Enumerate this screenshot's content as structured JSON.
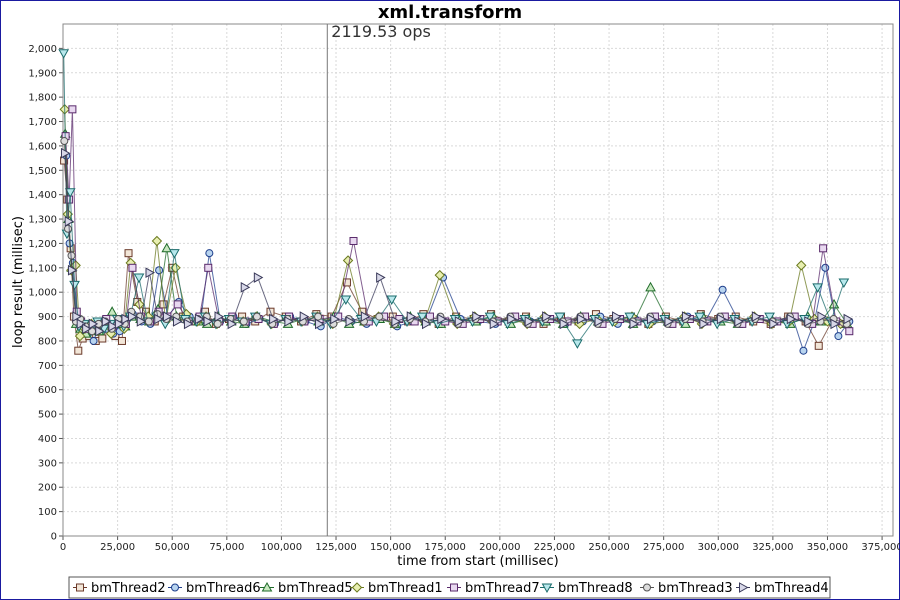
{
  "chart_data": {
    "type": "scatter",
    "title": "xml.transform",
    "annotation": "2119.53 ops",
    "annotation_x": 121000,
    "xlabel": "time from start (millisec)",
    "ylabel": "loop result (millisec)",
    "xlim": [
      0,
      380000
    ],
    "ylim": [
      0,
      2100
    ],
    "xticks": [
      0,
      25000,
      50000,
      75000,
      100000,
      125000,
      150000,
      175000,
      200000,
      225000,
      250000,
      275000,
      300000,
      325000,
      350000,
      375000
    ],
    "xtick_labels": [
      "0",
      "25,000",
      "50,000",
      "75,000",
      "100,000",
      "125,000",
      "150,000",
      "175,000",
      "200,000",
      "225,000",
      "250,000",
      "275,000",
      "300,000",
      "325,000",
      "350,000",
      "375,000"
    ],
    "yticks": [
      0,
      100,
      200,
      300,
      400,
      500,
      600,
      700,
      800,
      900,
      1000,
      1100,
      1200,
      1300,
      1400,
      1500,
      1600,
      1700,
      1800,
      1900,
      2000
    ],
    "ytick_labels": [
      "0",
      "100",
      "200",
      "300",
      "400",
      "500",
      "600",
      "700",
      "800",
      "900",
      "1,000",
      "1,100",
      "1,200",
      "1,300",
      "1,400",
      "1,500",
      "1,600",
      "1,700",
      "1,800",
      "1,900",
      "2,000"
    ],
    "grid": true,
    "legend_position": "bottom",
    "series": [
      {
        "name": "bmThread2",
        "marker": "square",
        "color": "#6b3a2a",
        "fill": "#f2e6d8",
        "x": [
          500,
          2000,
          3500,
          5000,
          7000,
          9000,
          12000,
          15000,
          18000,
          21000,
          24000,
          27000,
          30000,
          34000,
          38000,
          42000,
          46000,
          50000,
          55000,
          60000,
          65000,
          70000,
          76000,
          82000,
          88000,
          95000,
          102000,
          109000,
          116000,
          123000,
          130000,
          137000,
          144000,
          151000,
          158000,
          165000,
          172000,
          180000,
          188000,
          196000,
          204000,
          212000,
          220000,
          228000,
          236000,
          244000,
          252000,
          260000,
          268000,
          276000,
          284000,
          292000,
          300000,
          308000,
          316000,
          324000,
          332000,
          340000,
          346000,
          352000,
          358000
        ],
        "y": [
          1540,
          1380,
          1180,
          900,
          760,
          810,
          820,
          800,
          810,
          860,
          820,
          800,
          1160,
          960,
          920,
          880,
          950,
          1100,
          900,
          880,
          920,
          870,
          890,
          900,
          880,
          920,
          900,
          880,
          910,
          900,
          1040,
          920,
          890,
          900,
          880,
          910,
          870,
          900,
          890,
          910,
          880,
          900,
          870,
          900,
          880,
          910,
          890,
          900,
          870,
          900,
          880,
          910,
          890,
          900,
          880,
          870,
          900,
          880,
          780,
          880,
          870
        ]
      },
      {
        "name": "bmThread6",
        "marker": "circle",
        "color": "#1f3f8c",
        "fill": "#b8d4ef",
        "x": [
          1500,
          3000,
          4500,
          6500,
          8500,
          11000,
          14000,
          17000,
          20000,
          23000,
          26000,
          29000,
          32000,
          36000,
          40000,
          44000,
          48000,
          53000,
          58000,
          63000,
          67000,
          72000,
          78000,
          84000,
          90000,
          97000,
          104000,
          111000,
          118000,
          125000,
          132000,
          139000,
          146000,
          153000,
          160000,
          167000,
          174000,
          182000,
          190000,
          198000,
          206000,
          214000,
          222000,
          230000,
          238000,
          246000,
          254000,
          262000,
          270000,
          278000,
          286000,
          294000,
          302000,
          310000,
          318000,
          326000,
          334000,
          339000,
          344000,
          349000,
          355000,
          360000
        ],
        "y": [
          1560,
          1200,
          1120,
          880,
          860,
          840,
          800,
          880,
          850,
          830,
          840,
          890,
          910,
          880,
          870,
          1090,
          900,
          960,
          900,
          880,
          1160,
          880,
          900,
          870,
          890,
          870,
          900,
          880,
          860,
          900,
          880,
          870,
          900,
          860,
          880,
          900,
          1060,
          890,
          880,
          870,
          900,
          880,
          890,
          870,
          880,
          900,
          870,
          890,
          880,
          870,
          900,
          880,
          1010,
          870,
          890,
          880,
          900,
          760,
          880,
          1100,
          820,
          880
        ]
      },
      {
        "name": "bmThread5",
        "marker": "triangle-up",
        "color": "#1f6b2a",
        "fill": "#c8e8c0",
        "x": [
          1000,
          2500,
          4000,
          6000,
          8000,
          10500,
          13500,
          16500,
          19500,
          22500,
          25500,
          28500,
          31500,
          35500,
          39500,
          43500,
          47500,
          52000,
          57000,
          62000,
          66000,
          71000,
          77000,
          83000,
          89000,
          96000,
          103000,
          110000,
          117000,
          124000,
          131000,
          138000,
          145000,
          152000,
          159000,
          166000,
          173000,
          181000,
          189000,
          197000,
          205000,
          213000,
          221000,
          229000,
          237000,
          245000,
          253000,
          261000,
          269000,
          277000,
          285000,
          293000,
          301000,
          309000,
          317000,
          325000,
          333000,
          341000,
          347000,
          353000,
          359000
        ],
        "y": [
          1650,
          1300,
          1100,
          870,
          850,
          830,
          860,
          840,
          880,
          920,
          870,
          860,
          900,
          890,
          880,
          930,
          1180,
          900,
          890,
          880,
          870,
          900,
          880,
          870,
          900,
          880,
          870,
          890,
          880,
          900,
          870,
          880,
          890,
          870,
          900,
          880,
          870,
          890,
          880,
          900,
          870,
          890,
          880,
          870,
          900,
          880,
          890,
          870,
          1020,
          880,
          870,
          900,
          880,
          870,
          890,
          880,
          870,
          900,
          880,
          950,
          870
        ]
      },
      {
        "name": "bmThread1",
        "marker": "diamond",
        "color": "#6b7a20",
        "fill": "#e8efb0",
        "x": [
          800,
          2200,
          3800,
          5800,
          7800,
          10000,
          13000,
          16000,
          19000,
          22000,
          25000,
          28000,
          31000,
          35000,
          39000,
          43000,
          47000,
          51500,
          56500,
          61500,
          65500,
          70500,
          76500,
          82500,
          88500,
          95500,
          102500,
          109500,
          116500,
          123500,
          130500,
          137500,
          144500,
          151500,
          158500,
          165500,
          172500,
          180500,
          188500,
          196500,
          204500,
          212500,
          220500,
          228500,
          236500,
          244500,
          252500,
          260500,
          268500,
          276500,
          284500,
          292500,
          300500,
          308500,
          316500,
          324500,
          332500,
          338000,
          344000,
          350000,
          356000
        ],
        "y": [
          1750,
          1320,
          1090,
          1110,
          820,
          850,
          870,
          840,
          860,
          830,
          880,
          850,
          1120,
          950,
          900,
          1210,
          880,
          1100,
          910,
          880,
          900,
          870,
          890,
          880,
          900,
          870,
          890,
          880,
          900,
          870,
          1130,
          880,
          900,
          870,
          890,
          880,
          1070,
          870,
          900,
          880,
          890,
          870,
          900,
          880,
          870,
          890,
          880,
          900,
          870,
          880,
          900,
          870,
          890,
          880,
          900,
          870,
          880,
          1110,
          890,
          880,
          870
        ]
      },
      {
        "name": "bmThread7",
        "marker": "square",
        "color": "#5a2a6b",
        "fill": "#e8d8f0",
        "x": [
          1200,
          2800,
          4300,
          6300,
          8300,
          10800,
          13800,
          16800,
          19800,
          22800,
          25800,
          28800,
          31800,
          35800,
          39800,
          43800,
          47800,
          52500,
          57500,
          62500,
          66500,
          71500,
          77500,
          83500,
          89500,
          96500,
          103500,
          110500,
          117500,
          126000,
          133000,
          140000,
          147000,
          154000,
          161000,
          168000,
          175000,
          183000,
          191000,
          199000,
          207000,
          215000,
          223000,
          231000,
          239000,
          247000,
          255000,
          263000,
          271000,
          279000,
          287000,
          295000,
          303000,
          311000,
          319000,
          327000,
          335000,
          343000,
          348000,
          354000,
          360000
        ],
        "y": [
          1640,
          1380,
          1750,
          920,
          880,
          850,
          860,
          870,
          890,
          860,
          880,
          870,
          1100,
          900,
          880,
          920,
          900,
          950,
          880,
          900,
          1100,
          880,
          900,
          880,
          890,
          870,
          900,
          880,
          890,
          900,
          1210,
          880,
          900,
          890,
          880,
          900,
          880,
          870,
          890,
          880,
          900,
          870,
          890,
          880,
          900,
          870,
          890,
          880,
          900,
          870,
          890,
          880,
          900,
          870,
          890,
          880,
          900,
          870,
          1180,
          880,
          840
        ]
      },
      {
        "name": "bmThread8",
        "marker": "triangle-down",
        "color": "#1a6b6b",
        "fill": "#b8e8ec",
        "x": [
          300,
          1800,
          3300,
          5300,
          7300,
          9800,
          12800,
          15800,
          18800,
          21800,
          24800,
          27800,
          30800,
          34800,
          38800,
          42800,
          46800,
          51000,
          56000,
          61000,
          65000,
          70000,
          76000,
          82000,
          88000,
          95000,
          102000,
          109000,
          116000,
          122500,
          129500,
          136500,
          143500,
          150500,
          157500,
          164500,
          171500,
          179500,
          187500,
          195500,
          203500,
          211500,
          219500,
          227500,
          235500,
          243500,
          251500,
          259500,
          267500,
          275500,
          283500,
          291500,
          299500,
          307500,
          315500,
          323500,
          331500,
          339500,
          345500,
          351500,
          357500
        ],
        "y": [
          1980,
          1240,
          1410,
          1030,
          860,
          870,
          840,
          880,
          850,
          870,
          890,
          860,
          900,
          1060,
          880,
          900,
          870,
          1160,
          890,
          880,
          900,
          870,
          890,
          880,
          900,
          870,
          890,
          880,
          900,
          870,
          970,
          890,
          880,
          970,
          880,
          900,
          870,
          890,
          880,
          900,
          870,
          890,
          880,
          900,
          790,
          890,
          880,
          900,
          870,
          890,
          880,
          900,
          870,
          890,
          880,
          900,
          870,
          890,
          1020,
          880,
          1040
        ]
      },
      {
        "name": "bmThread3",
        "marker": "circle",
        "color": "#555555",
        "fill": "#dddddd",
        "x": [
          600,
          2300,
          3900,
          5900,
          7900,
          10300,
          13300,
          16300,
          19300,
          22300,
          25300,
          28300,
          31300,
          35300,
          39300,
          43300,
          47300,
          51800,
          56800,
          61800,
          65800,
          70800,
          76800,
          82800,
          88800,
          95800,
          102800,
          109800,
          116800,
          123800,
          130800,
          137800,
          144800,
          151800,
          158800,
          165800,
          172800,
          180800,
          188800,
          196800,
          204800,
          212800,
          220800,
          228800,
          236800,
          244800,
          252800,
          260800,
          268800,
          276800,
          284800,
          292800,
          300800,
          308800,
          316800,
          324800,
          332800,
          340800,
          346800,
          352800,
          358800
        ],
        "y": [
          1620,
          1260,
          1150,
          880,
          890,
          860,
          840,
          870,
          880,
          850,
          890,
          870,
          920,
          900,
          880,
          910,
          890,
          900,
          880,
          890,
          900,
          870,
          890,
          880,
          900,
          870,
          890,
          880,
          900,
          870,
          890,
          880,
          900,
          870,
          890,
          880,
          900,
          870,
          890,
          880,
          900,
          870,
          890,
          880,
          900,
          870,
          890,
          880,
          900,
          870,
          890,
          880,
          900,
          870,
          890,
          880,
          900,
          870,
          880,
          890,
          870
        ]
      },
      {
        "name": "bmThread4",
        "marker": "triangle-right",
        "color": "#3a3a5a",
        "fill": "#d8d8e8",
        "x": [
          900,
          2600,
          4100,
          6100,
          8100,
          10600,
          13600,
          16600,
          19600,
          22600,
          25600,
          28600,
          31600,
          35600,
          39600,
          43600,
          47600,
          52200,
          57200,
          62200,
          66200,
          71200,
          77200,
          83200,
          89200,
          96200,
          103200,
          110200,
          117200,
          124200,
          131200,
          138200,
          145200,
          152200,
          159200,
          166200,
          173200,
          181200,
          189200,
          197200,
          205200,
          213200,
          221200,
          229200,
          237200,
          245200,
          253200,
          261200,
          269200,
          277200,
          285200,
          293200,
          301200,
          309200,
          317200,
          325200,
          333200,
          341200,
          347200,
          353200,
          359200
        ],
        "y": [
          1570,
          1290,
          1090,
          900,
          870,
          850,
          870,
          840,
          880,
          860,
          870,
          890,
          900,
          880,
          1080,
          890,
          900,
          880,
          870,
          890,
          880,
          900,
          870,
          1020,
          1060,
          890,
          880,
          900,
          870,
          890,
          880,
          900,
          1060,
          880,
          900,
          870,
          890,
          880,
          900,
          870,
          890,
          880,
          900,
          870,
          890,
          880,
          900,
          870,
          890,
          880,
          900,
          870,
          890,
          880,
          900,
          870,
          890,
          880,
          900,
          870,
          890
        ]
      }
    ]
  }
}
